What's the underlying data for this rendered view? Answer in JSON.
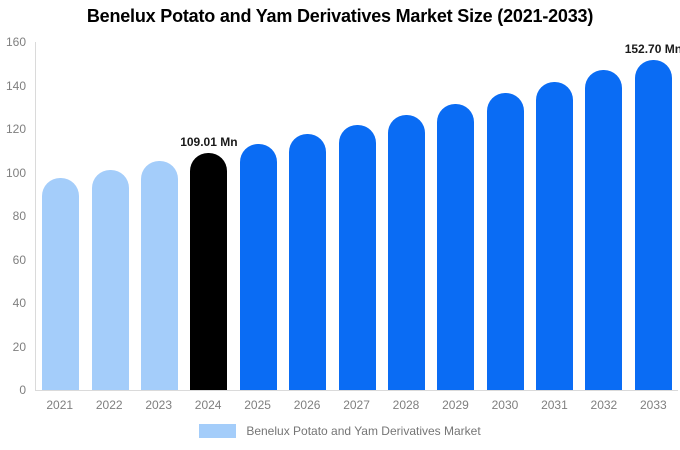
{
  "title": "Benelux Potato and Yam Derivatives Market Size (2021-2033)",
  "legend": {
    "label": "Benelux Potato and Yam Derivatives Market",
    "swatch_color": "#a4cdfa"
  },
  "chart_data": {
    "type": "bar",
    "title": "Benelux Potato and Yam Derivatives Market Size (2021-2033)",
    "categories": [
      "2021",
      "2022",
      "2023",
      "2024",
      "2025",
      "2026",
      "2027",
      "2028",
      "2029",
      "2030",
      "2031",
      "2032",
      "2033"
    ],
    "values": [
      97.5,
      101.2,
      105.1,
      109.01,
      113.2,
      117.5,
      122.0,
      126.6,
      131.5,
      136.5,
      141.7,
      147.1,
      152.7
    ],
    "point_labels": [
      "",
      "",
      "",
      "109.01 Mn",
      "",
      "",
      "",
      "",
      "",
      "",
      "",
      "",
      "152.70 Mn"
    ],
    "bar_color_roles": [
      "past",
      "past",
      "past",
      "current",
      "forecast",
      "forecast",
      "forecast",
      "forecast",
      "forecast",
      "forecast",
      "forecast",
      "forecast",
      "forecast"
    ],
    "colors": {
      "past": "#a4cdfa",
      "current": "#000000",
      "forecast": "#0a6cf4"
    },
    "xlabel": "",
    "ylabel": "",
    "ylim": [
      0,
      160
    ],
    "yticks": [
      0,
      20,
      40,
      60,
      80,
      100,
      120,
      140,
      160
    ],
    "grid": false,
    "legend_position": "bottom",
    "legend_entries": [
      "Benelux Potato and Yam Derivatives Market"
    ],
    "axis_line_color": "#dadada",
    "tick_label_color": "#7f7f7f",
    "value_label_color": "#1a1a1a",
    "title_color": "#000000"
  }
}
